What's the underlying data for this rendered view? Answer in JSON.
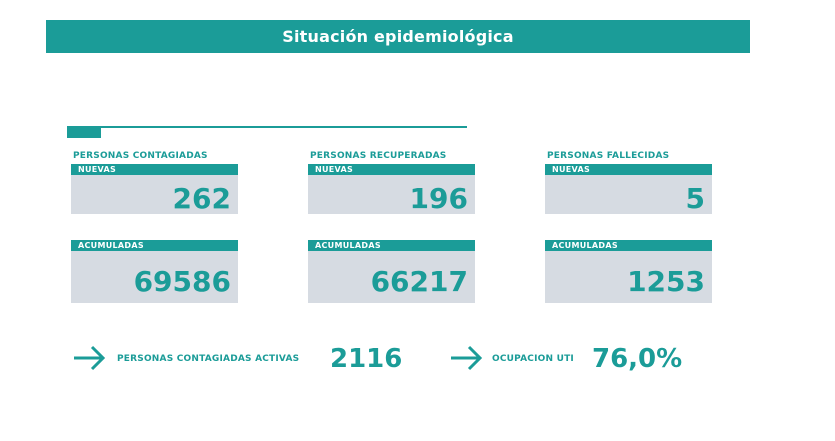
{
  "title": "Situación epidemiológica",
  "columns": [
    {
      "title": "PERSONAS CONTAGIADAS",
      "nuevas_label": "NUEVAS",
      "nuevas_value": "262",
      "acumuladas_label": "ACUMULADAS",
      "acumuladas_value": "69586"
    },
    {
      "title": "PERSONAS RECUPERADAS",
      "nuevas_label": "NUEVAS",
      "nuevas_value": "196",
      "acumuladas_label": "ACUMULADAS",
      "acumuladas_value": "66217"
    },
    {
      "title": "PERSONAS FALLECIDAS",
      "nuevas_label": "NUEVAS",
      "nuevas_value": "5",
      "acumuladas_label": "ACUMULADAS",
      "acumuladas_value": "1253"
    }
  ],
  "footer": {
    "activas_label": "PERSONAS CONTAGIADAS ACTIVAS",
    "activas_value": "2116",
    "uti_label": "OCUPACION UTI",
    "uti_value": "76,0%"
  },
  "colors": {
    "accent": "#1b9c98",
    "card_bg": "#d6dbe2"
  },
  "icons": [
    "arrow-right-icon",
    "arrow-right-icon"
  ]
}
